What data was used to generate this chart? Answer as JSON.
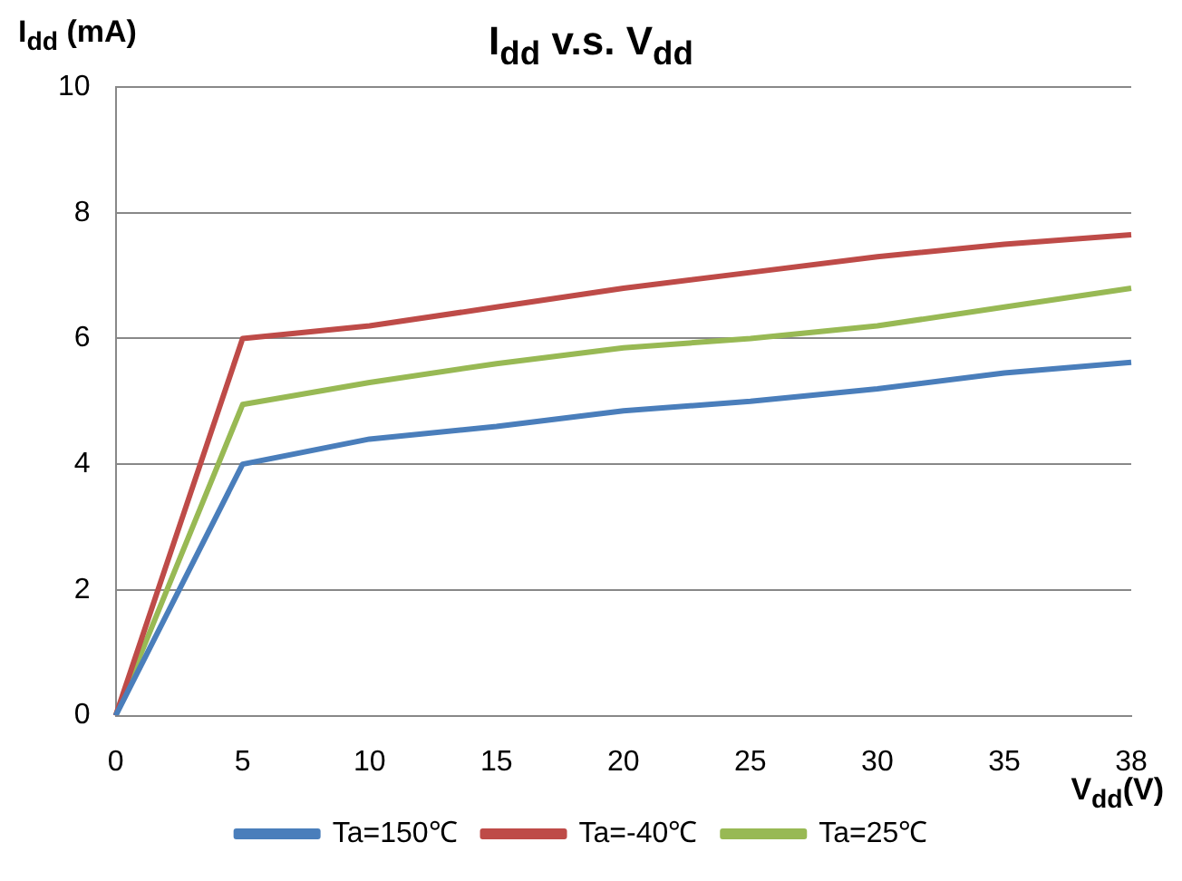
{
  "chart_data": {
    "type": "line",
    "title": "I$_{dd}$ v.s. V$_{dd}$",
    "xlabel": "V$_{dd}$(V)",
    "ylabel": "I$_{dd}$ (mA)",
    "categories": [
      "0",
      "5",
      "10",
      "15",
      "20",
      "25",
      "30",
      "35",
      "38"
    ],
    "series": [
      {
        "name": "Ta=150℃",
        "color": "#4a7ebb",
        "values": [
          0,
          4.0,
          4.4,
          4.6,
          4.85,
          5.0,
          5.2,
          5.45,
          5.62
        ]
      },
      {
        "name": "Ta=-40℃",
        "color": "#be4b48",
        "values": [
          0,
          6.0,
          6.2,
          6.5,
          6.8,
          7.05,
          7.3,
          7.5,
          7.65
        ]
      },
      {
        "name": "Ta=25℃",
        "color": "#98b954",
        "values": [
          0,
          4.95,
          5.3,
          5.6,
          5.85,
          6.0,
          6.2,
          6.5,
          6.8
        ]
      }
    ],
    "ylim": [
      0,
      10
    ],
    "yticks": [
      0,
      2,
      4,
      6,
      8,
      10
    ],
    "grid": "y",
    "legend": "bottom",
    "marker": "none",
    "line_style": "solid"
  }
}
